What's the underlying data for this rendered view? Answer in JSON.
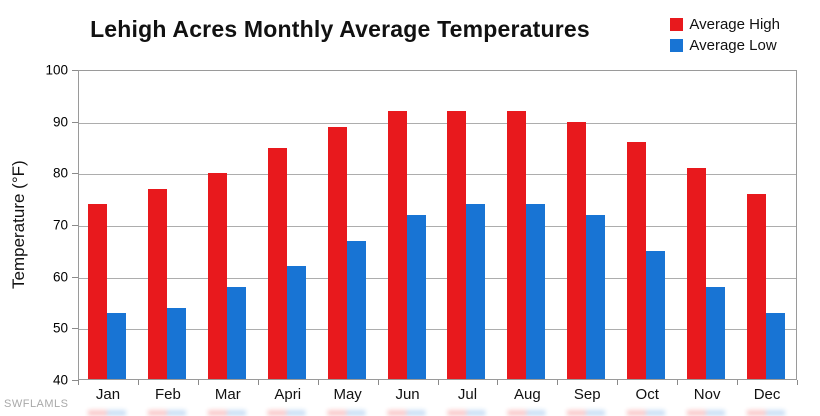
{
  "title": "Lehigh Acres Monthly Average Temperatures",
  "watermark": "SWFLAMLS",
  "colors": {
    "average_high": "#e8191d",
    "average_low": "#1874d4",
    "gridline": "#adadad",
    "axis": "#9a9a9a",
    "title_text": "#111111",
    "watermark_text": "#a9a9a9"
  },
  "legend": {
    "position": "top-right",
    "items": [
      {
        "label": "Average High",
        "color": "#e8191d"
      },
      {
        "label": "Average Low",
        "color": "#1874d4"
      }
    ]
  },
  "chart_data": {
    "type": "bar",
    "title": "Lehigh Acres Monthly Average Temperatures",
    "categories": [
      "Jan",
      "Feb",
      "Mar",
      "Apri",
      "May",
      "Jun",
      "Jul",
      "Aug",
      "Sep",
      "Oct",
      "Nov",
      "Dec"
    ],
    "series": [
      {
        "name": "Average High",
        "color": "#e8191d",
        "values": [
          74,
          77,
          80,
          85,
          89,
          92,
          92,
          92,
          90,
          86,
          81,
          76
        ]
      },
      {
        "name": "Average Low",
        "color": "#1874d4",
        "values": [
          53,
          54,
          58,
          62,
          67,
          72,
          74,
          74,
          72,
          65,
          58,
          53
        ]
      }
    ],
    "xlabel": "",
    "ylabel": "Temperature (°F)",
    "ylim": [
      40,
      100
    ],
    "yticks": [
      40,
      50,
      60,
      70,
      80,
      90,
      100
    ],
    "grid": true,
    "legend_position": "top-right"
  }
}
